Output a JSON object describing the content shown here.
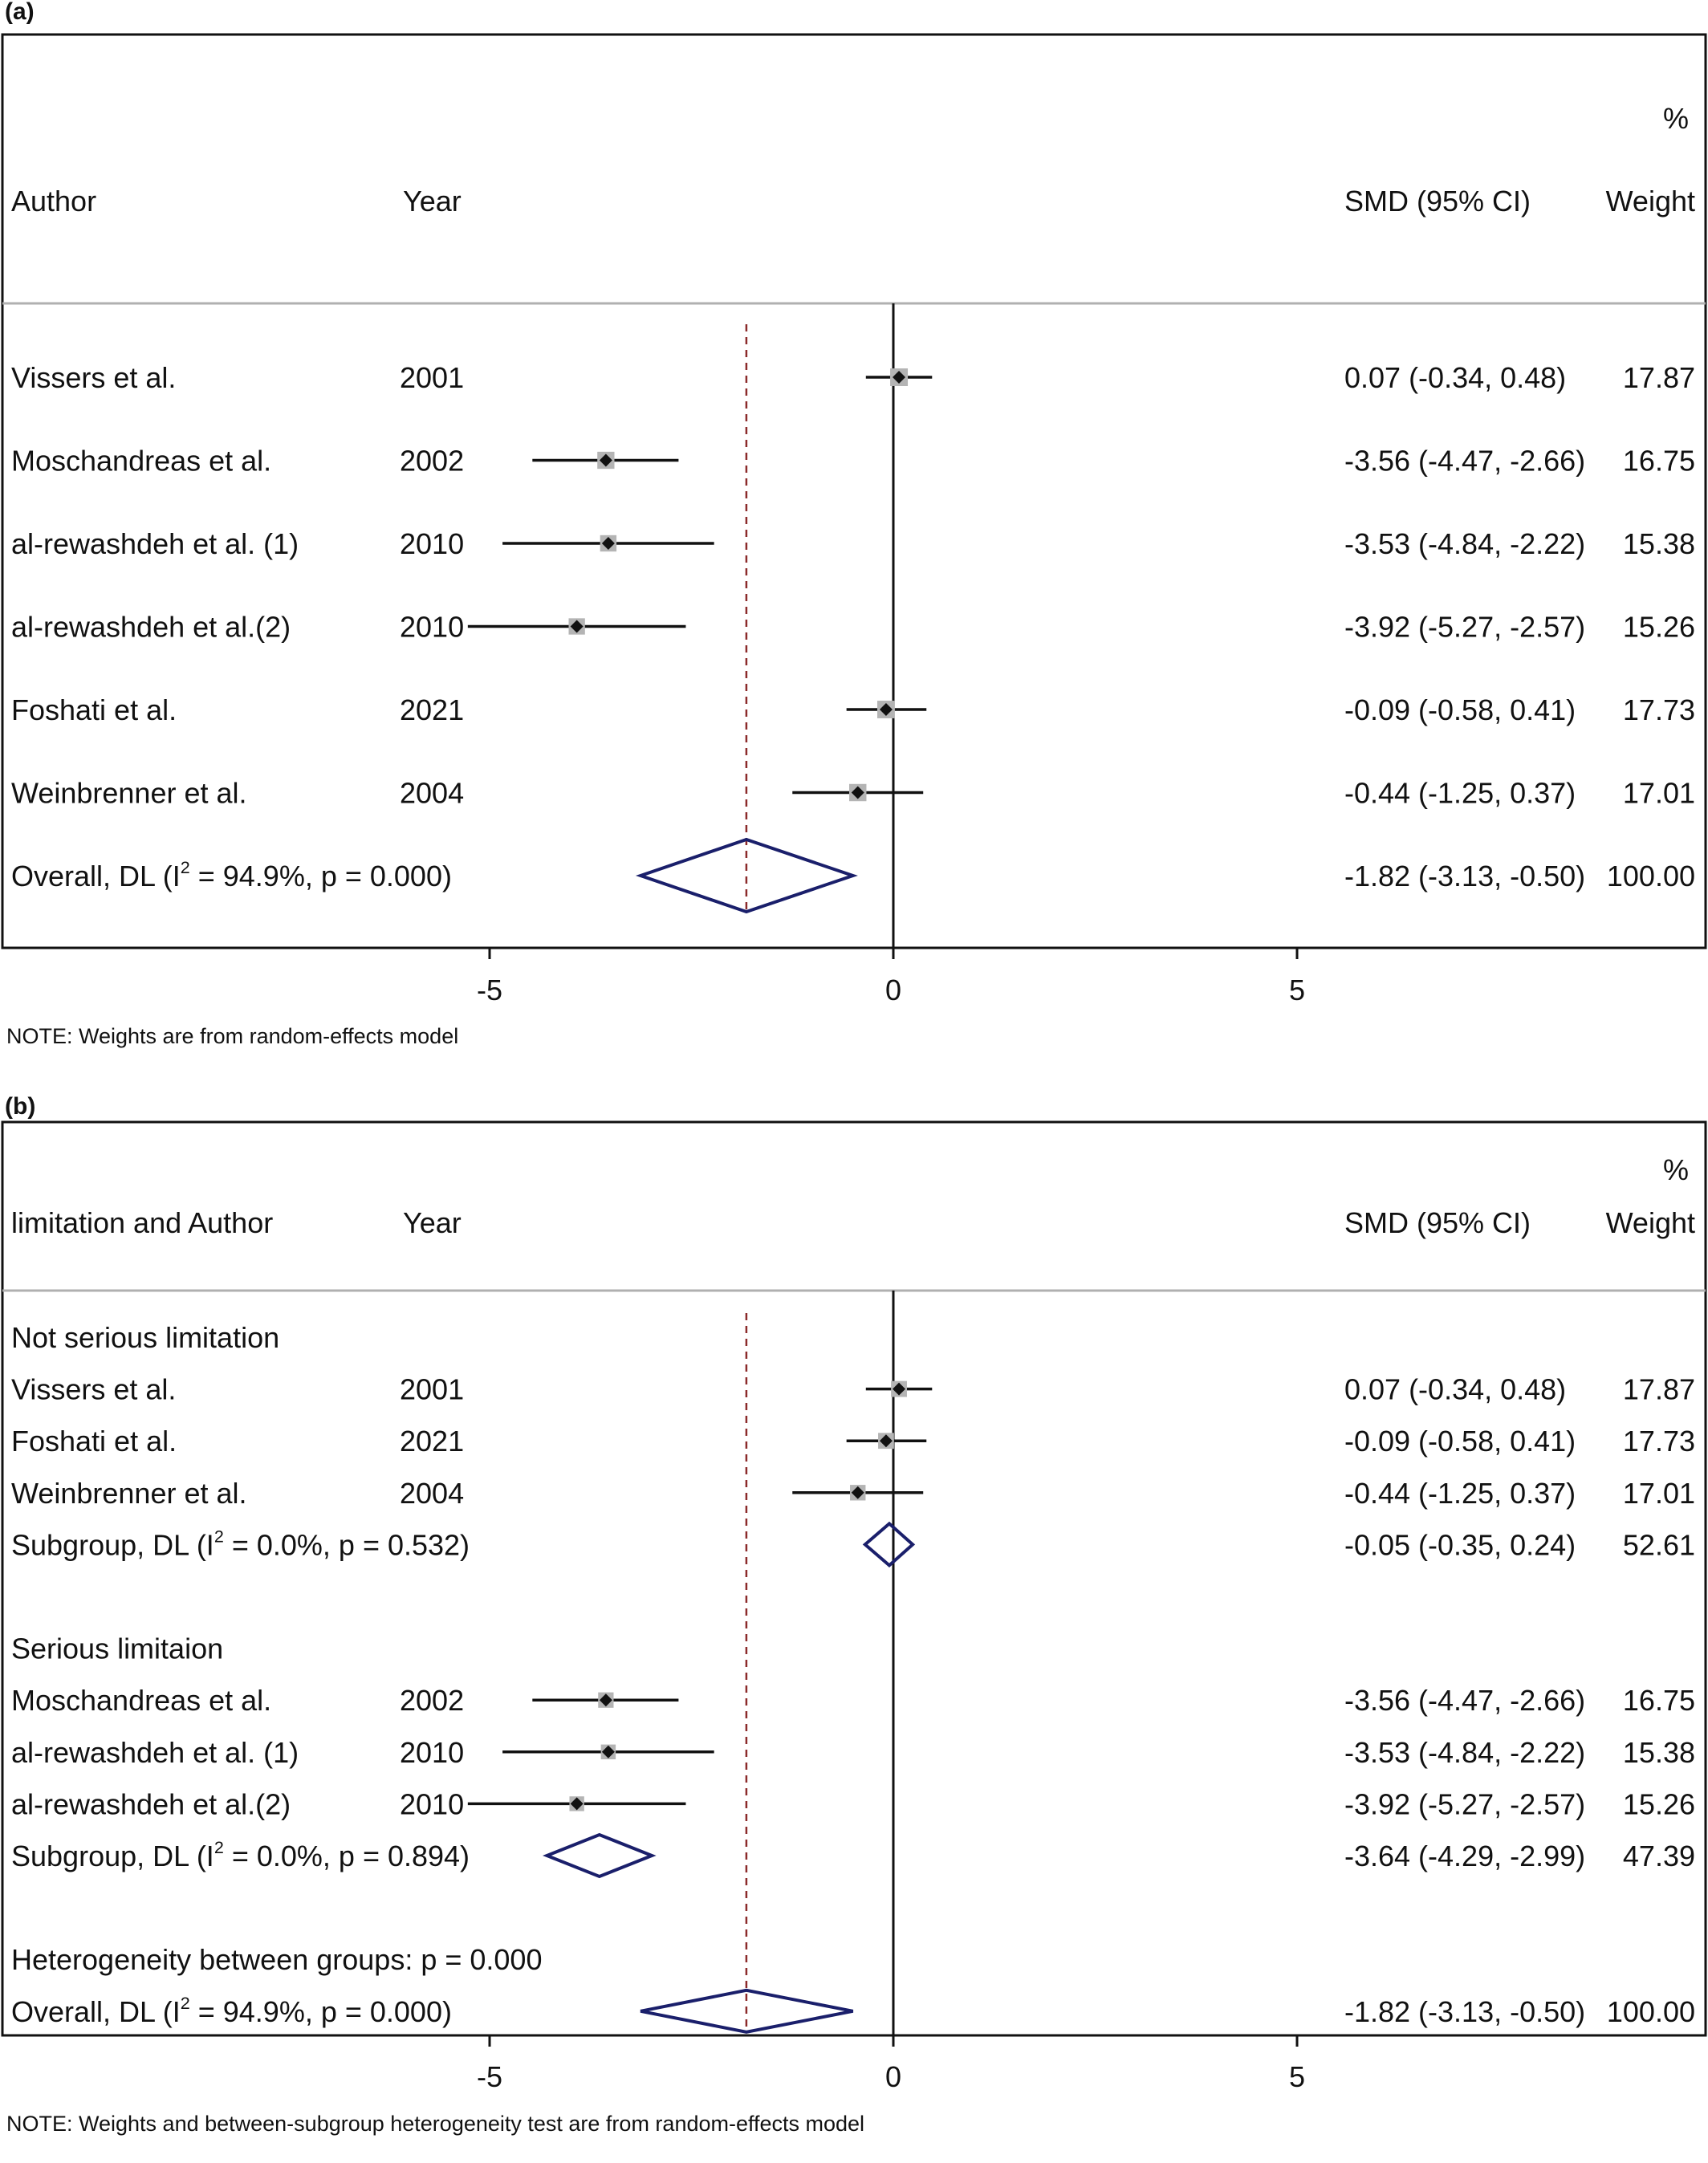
{
  "chart_data": [
    {
      "panel_label": "(a)",
      "type": "forest",
      "col_author": "Author",
      "col_year": "Year",
      "col_effect": "SMD (95% CI)",
      "col_weight_top": "%",
      "col_weight": "Weight",
      "x_ticks": [
        -5,
        0,
        5
      ],
      "x_tick_labels": [
        "-5",
        "0",
        "5"
      ],
      "xlim": [
        -11,
        10.1
      ],
      "null_line": 0,
      "overall_line": -1.82,
      "note": "NOTE: Weights are from random-effects model",
      "rows": [
        {
          "kind": "study",
          "name": "Vissers et al.",
          "year": "2001",
          "smd": 0.07,
          "lo": -0.34,
          "hi": 0.48,
          "weight": 17.87,
          "ci_text": "0.07 (-0.34, 0.48)",
          "weight_text": "17.87"
        },
        {
          "kind": "study",
          "name": "Moschandreas et al.",
          "year": "2002",
          "smd": -3.56,
          "lo": -4.47,
          "hi": -2.66,
          "weight": 16.75,
          "ci_text": "-3.56 (-4.47, -2.66)",
          "weight_text": "16.75"
        },
        {
          "kind": "study",
          "name": "al-rewashdeh et al. (1)",
          "year": "2010",
          "smd": -3.53,
          "lo": -4.84,
          "hi": -2.22,
          "weight": 15.38,
          "ci_text": "-3.53 (-4.84, -2.22)",
          "weight_text": "15.38"
        },
        {
          "kind": "study",
          "name": "al-rewashdeh et al.(2)",
          "year": "2010",
          "smd": -3.92,
          "lo": -5.27,
          "hi": -2.57,
          "weight": 15.26,
          "ci_text": "-3.92 (-5.27, -2.57)",
          "weight_text": "15.26"
        },
        {
          "kind": "study",
          "name": "Foshati et al.",
          "year": "2021",
          "smd": -0.09,
          "lo": -0.58,
          "hi": 0.41,
          "weight": 17.73,
          "ci_text": "-0.09 (-0.58, 0.41)",
          "weight_text": "17.73"
        },
        {
          "kind": "study",
          "name": "Weinbrenner et al.",
          "year": "2004",
          "smd": -0.44,
          "lo": -1.25,
          "hi": 0.37,
          "weight": 17.01,
          "ci_text": "-0.44 (-1.25, 0.37)",
          "weight_text": "17.01"
        },
        {
          "kind": "overall",
          "name": "Overall, DL (I",
          "sup": "2",
          "name_rest": " = 94.9%, p = 0.000)",
          "smd": -1.82,
          "lo": -3.13,
          "hi": -0.5,
          "ci_text": "-1.82 (-3.13, -0.50)",
          "weight_text": "100.00"
        }
      ]
    },
    {
      "panel_label": "(b)",
      "type": "forest",
      "col_author": "limitation and Author",
      "col_year": "Year",
      "col_effect": "SMD (95% CI)",
      "col_weight_top": "%",
      "col_weight": "Weight",
      "x_ticks": [
        -5,
        0,
        5
      ],
      "x_tick_labels": [
        "-5",
        "0",
        "5"
      ],
      "xlim": [
        -11,
        10.1
      ],
      "null_line": 0,
      "overall_line": -1.82,
      "note": "NOTE: Weights and between-subgroup heterogeneity test are from random-effects model",
      "rows": [
        {
          "kind": "header",
          "name": "Not serious limitation"
        },
        {
          "kind": "study",
          "name": "Vissers et al.",
          "year": "2001",
          "smd": 0.07,
          "lo": -0.34,
          "hi": 0.48,
          "weight": 17.87,
          "ci_text": "0.07 (-0.34, 0.48)",
          "weight_text": "17.87"
        },
        {
          "kind": "study",
          "name": "Foshati et al.",
          "year": "2021",
          "smd": -0.09,
          "lo": -0.58,
          "hi": 0.41,
          "weight": 17.73,
          "ci_text": "-0.09 (-0.58, 0.41)",
          "weight_text": "17.73"
        },
        {
          "kind": "study",
          "name": "Weinbrenner et al.",
          "year": "2004",
          "smd": -0.44,
          "lo": -1.25,
          "hi": 0.37,
          "weight": 17.01,
          "ci_text": "-0.44 (-1.25, 0.37)",
          "weight_text": "17.01"
        },
        {
          "kind": "subgroup",
          "name": "Subgroup, DL (I",
          "sup": "2",
          "name_rest": " = 0.0%, p = 0.532)",
          "smd": -0.05,
          "lo": -0.35,
          "hi": 0.24,
          "ci_text": "-0.05 (-0.35, 0.24)",
          "weight_text": "52.61"
        },
        {
          "kind": "spacer"
        },
        {
          "kind": "header",
          "name": "Serious limitaion"
        },
        {
          "kind": "study",
          "name": "Moschandreas et al.",
          "year": "2002",
          "smd": -3.56,
          "lo": -4.47,
          "hi": -2.66,
          "weight": 16.75,
          "ci_text": "-3.56 (-4.47, -2.66)",
          "weight_text": "16.75"
        },
        {
          "kind": "study",
          "name": "al-rewashdeh et al. (1)",
          "year": "2010",
          "smd": -3.53,
          "lo": -4.84,
          "hi": -2.22,
          "weight": 15.38,
          "ci_text": "-3.53 (-4.84, -2.22)",
          "weight_text": "15.38"
        },
        {
          "kind": "study",
          "name": "al-rewashdeh et al.(2)",
          "year": "2010",
          "smd": -3.92,
          "lo": -5.27,
          "hi": -2.57,
          "weight": 15.26,
          "ci_text": "-3.92 (-5.27, -2.57)",
          "weight_text": "15.26"
        },
        {
          "kind": "subgroup",
          "name": "Subgroup, DL (I",
          "sup": "2",
          "name_rest": " = 0.0%, p = 0.894)",
          "smd": -3.64,
          "lo": -4.29,
          "hi": -2.99,
          "ci_text": "-3.64 (-4.29, -2.99)",
          "weight_text": "47.39"
        },
        {
          "kind": "spacer"
        },
        {
          "kind": "header",
          "name": "Heterogeneity between groups: p = 0.000"
        },
        {
          "kind": "overall",
          "name": "Overall, DL (I",
          "sup": "2",
          "name_rest": " = 94.9%, p = 0.000)",
          "smd": -1.82,
          "lo": -3.13,
          "hi": -0.5,
          "ci_text": "-1.82 (-3.13, -0.50)",
          "weight_text": "100.00"
        }
      ]
    }
  ],
  "colors": {
    "diamond": "#1a1f6b",
    "overall_line": "#8b2a2a",
    "weight_box": "#b4b4b4",
    "marker": "#111111",
    "axis": "#111111",
    "separator": "#b0b0b0"
  }
}
